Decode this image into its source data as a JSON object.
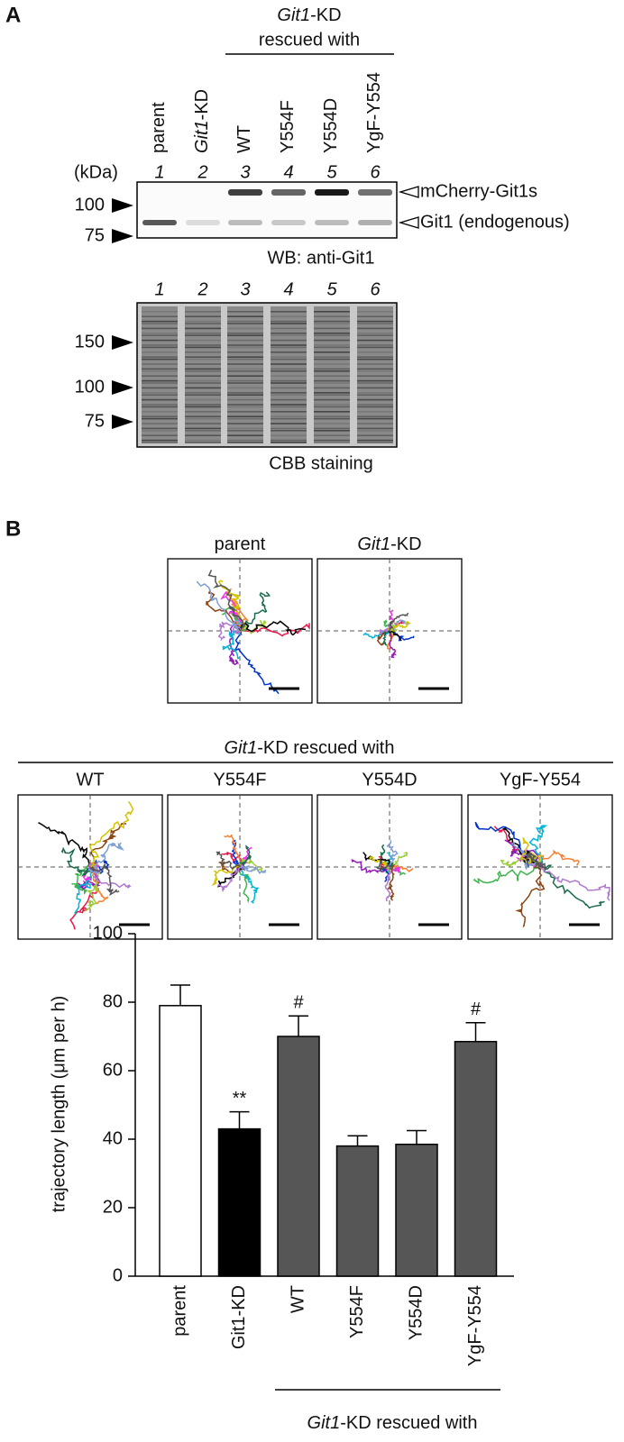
{
  "panel_a": {
    "label": "A",
    "header": {
      "gene": "Git1",
      "suffix": "-KD",
      "line2": "rescued with"
    },
    "lanes": [
      {
        "number": "1",
        "name": "parent"
      },
      {
        "number": "2",
        "gene": "Git1",
        "name": "-KD"
      },
      {
        "number": "3",
        "name": "WT"
      },
      {
        "number": "4",
        "name": "Y554F"
      },
      {
        "number": "5",
        "name": "Y554D"
      },
      {
        "number": "6",
        "name": "YgF-Y554"
      }
    ],
    "kda_label": "(kDa)",
    "wb_markers": [
      "100",
      "75"
    ],
    "wb_bands": [
      "mCherry-Git1s",
      "Git1 (endogenous)"
    ],
    "wb_caption": "WB: anti-Git1",
    "cbb_markers": [
      "150",
      "100",
      "75"
    ],
    "cbb_caption": "CBB staining"
  },
  "panel_b": {
    "label": "B",
    "top_plots": [
      {
        "title": "parent"
      },
      {
        "gene": "Git1",
        "title": "-KD"
      }
    ],
    "header": {
      "gene": "Git1",
      "suffix": "-KD rescued with"
    },
    "bottom_plots": [
      "WT",
      "Y554F",
      "Y554D",
      "YgF-Y554"
    ]
  },
  "chart_data": {
    "type": "bar",
    "y_label": "trajectory length  (μm per h)",
    "categories": [
      "parent",
      "Git1-KD",
      "WT",
      "Y554F",
      "Y554D",
      "YgF-Y554"
    ],
    "values": [
      79,
      43,
      70,
      38,
      38.5,
      68.5
    ],
    "errors": [
      6,
      5,
      6,
      3,
      4,
      5.5
    ],
    "colors": [
      "#ffffff",
      "#000000",
      "#565656",
      "#565656",
      "#565656",
      "#565656"
    ],
    "annotations": [
      {
        "index": 1,
        "text": "**"
      },
      {
        "index": 2,
        "text": "#"
      },
      {
        "index": 5,
        "text": "#"
      }
    ],
    "group_label": {
      "gene": "Git1",
      "suffix": "-KD rescued with"
    },
    "ylim": [
      0,
      100
    ],
    "yticks": [
      0,
      20,
      40,
      60,
      80,
      100
    ]
  }
}
